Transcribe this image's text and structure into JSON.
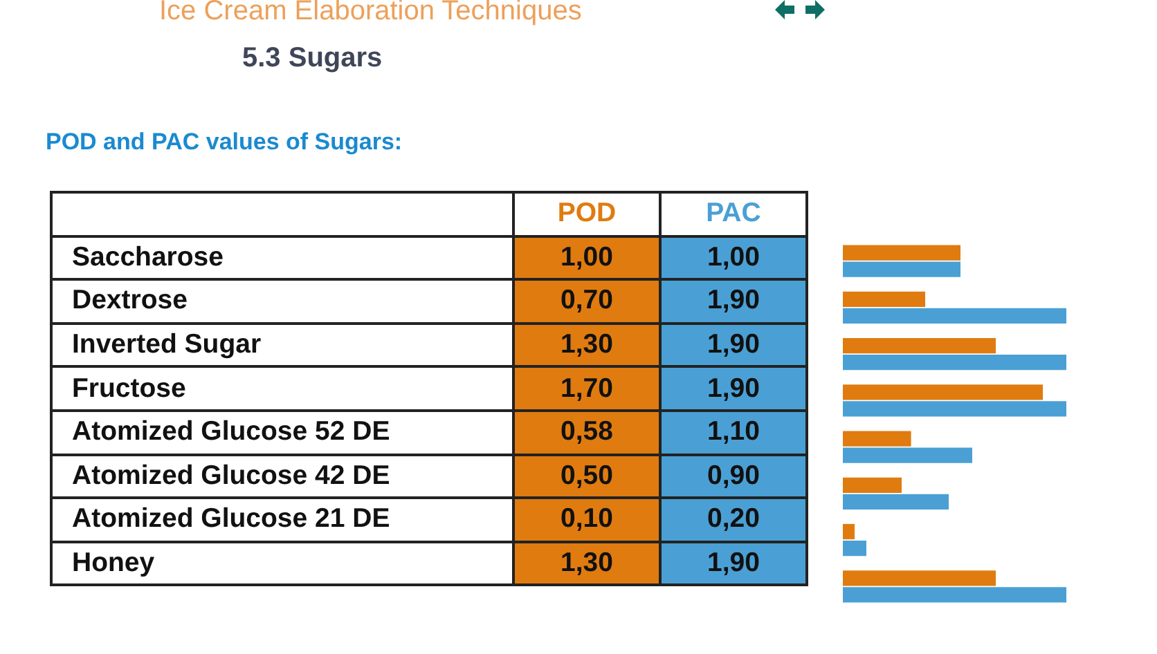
{
  "chart_data": {
    "type": "bar",
    "orientation": "horizontal",
    "title": "Ice Cream Elaboration Techniques",
    "subtitle": "5.3 Sugars",
    "annotations": [
      "POD and PAC values of Sugars:"
    ],
    "categories": [
      "Saccharose",
      "Dextrose",
      "Inverted Sugar",
      "Fructose",
      "Atomized Glucose 52 DE",
      "Atomized Glucose 42 DE",
      "Atomized Glucose 21 DE",
      "Honey"
    ],
    "series": [
      {
        "name": "POD",
        "color": "#e07b10",
        "values": [
          1.0,
          0.7,
          1.3,
          1.7,
          0.58,
          0.5,
          0.1,
          1.3
        ],
        "value_labels": [
          "1,00",
          "0,70",
          "1,30",
          "1,70",
          "0,58",
          "0,50",
          "0,10",
          "1,30"
        ]
      },
      {
        "name": "PAC",
        "color": "#4aa0d5",
        "values": [
          1.0,
          1.9,
          1.9,
          1.9,
          1.1,
          0.9,
          0.2,
          1.9
        ],
        "value_labels": [
          "1,00",
          "1,90",
          "1,90",
          "1,90",
          "1,10",
          "0,90",
          "0,20",
          "1,90"
        ]
      }
    ]
  }
}
